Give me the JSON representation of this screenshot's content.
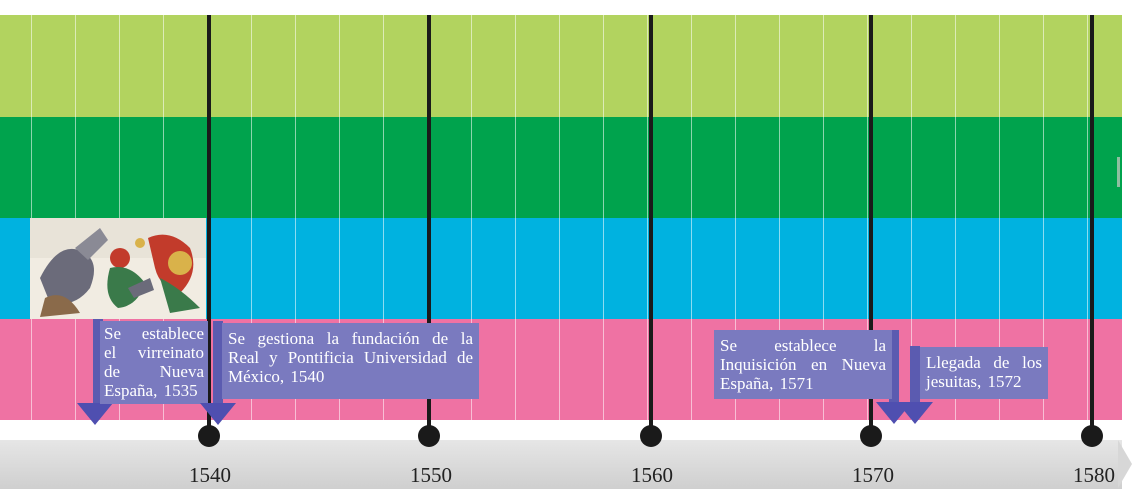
{
  "timeline": {
    "years": [
      "1540",
      "1550",
      "1560",
      "1570",
      "1580"
    ],
    "band_colors": [
      "#b2d35f",
      "#00a34d",
      "#00b2e0",
      "#ef72a3"
    ],
    "line_color": "#1a1a1a"
  },
  "events": [
    {
      "text": "Se establece el virreinato de Nueva España, 1535",
      "year": 1535
    },
    {
      "text": "Se gestiona la fundación de la Real y Pontificia Universidad de México, 1540",
      "year": 1540
    },
    {
      "text": "Se establece la Inquisición en Nueva España, 1571",
      "year": 1571
    },
    {
      "text": "Llegada de los jesuitas, 1572",
      "year": 1572
    }
  ],
  "picture": {
    "subject": "battle-painting",
    "colors": [
      "#f1ece2",
      "#6b6b7a",
      "#c23b2b",
      "#3a7a4a",
      "#d9b24a"
    ]
  }
}
